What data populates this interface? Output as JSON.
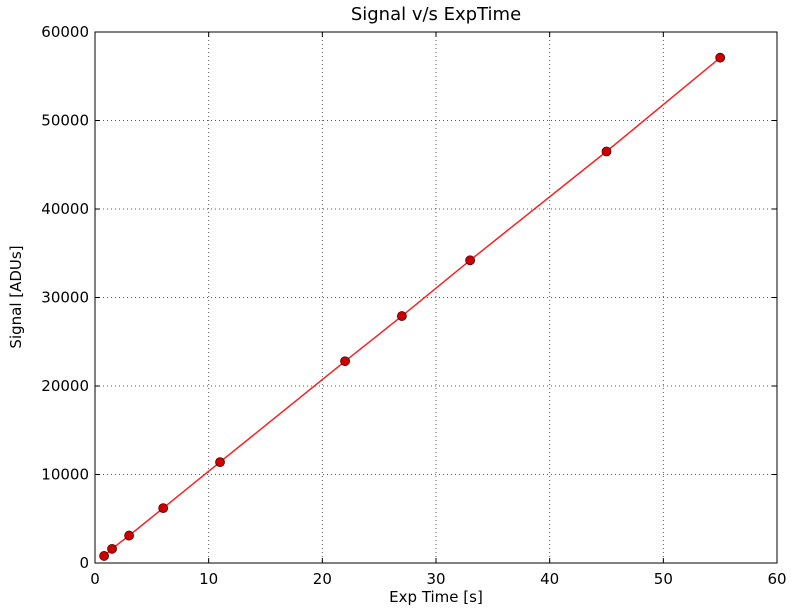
{
  "chart_data": {
    "type": "line",
    "title": "Signal v/s ExpTime",
    "xlabel": "Exp Time [s]",
    "ylabel": "Signal [ADUs]",
    "xlim": [
      0,
      60
    ],
    "ylim": [
      0,
      60000
    ],
    "xticks": [
      "0",
      "10",
      "20",
      "30",
      "40",
      "50",
      "60"
    ],
    "yticks": [
      "0",
      "10000",
      "20000",
      "30000",
      "40000",
      "50000",
      "60000"
    ],
    "grid": true,
    "series": [
      {
        "color": "#ff1f1f",
        "marker_color": "#cc0000",
        "x": [
          0.8,
          1.5,
          3,
          6,
          11,
          22,
          27,
          33,
          45,
          55
        ],
        "y": [
          800,
          1600,
          3100,
          6200,
          11400,
          22800,
          27900,
          34200,
          46500,
          57100
        ]
      }
    ]
  }
}
